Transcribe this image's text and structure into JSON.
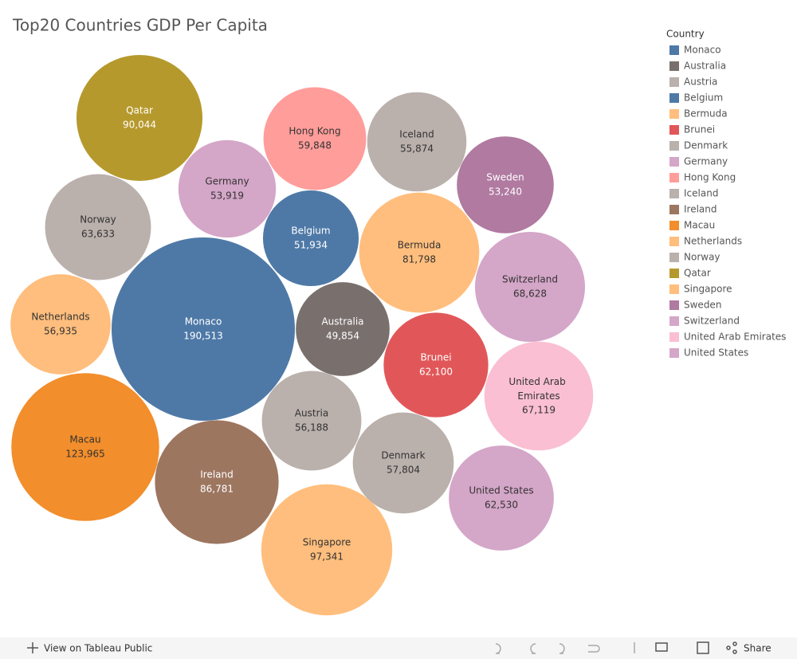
{
  "chart_data": {
    "type": "bubble",
    "title": "Top20 Countries GDP Per Capita",
    "legend_title": "Country",
    "legend": "right",
    "series": [
      {
        "name": "Monaco",
        "color": "#4e79a7",
        "values": [
          190513
        ],
        "value_labels": [
          "190,513"
        ]
      },
      {
        "name": "Australia",
        "color": "#79706e",
        "values": [
          49854
        ],
        "value_labels": [
          "49,854"
        ]
      },
      {
        "name": "Austria",
        "color": "#bab0ac",
        "values": [
          56188
        ],
        "value_labels": [
          "56,188"
        ]
      },
      {
        "name": "Belgium",
        "color": "#4e79a7",
        "values": [
          51934
        ],
        "value_labels": [
          "51,934"
        ]
      },
      {
        "name": "Bermuda",
        "color": "#ffbe7d",
        "values": [
          81798
        ],
        "value_labels": [
          "81,798"
        ]
      },
      {
        "name": "Brunei",
        "color": "#e15759",
        "values": [
          62100
        ],
        "value_labels": [
          "62,100"
        ]
      },
      {
        "name": "Denmark",
        "color": "#bab0ac",
        "values": [
          57804
        ],
        "value_labels": [
          "57,804"
        ]
      },
      {
        "name": "Germany",
        "color": "#d4a6c8",
        "values": [
          53919
        ],
        "value_labels": [
          "53,919"
        ]
      },
      {
        "name": "Hong Kong",
        "color": "#ff9d9a",
        "values": [
          59848
        ],
        "value_labels": [
          "59,848"
        ]
      },
      {
        "name": "Iceland",
        "color": "#bab0ac",
        "values": [
          55874
        ],
        "value_labels": [
          "55,874"
        ]
      },
      {
        "name": "Ireland",
        "color": "#9d7660",
        "values": [
          86781
        ],
        "value_labels": [
          "86,781"
        ]
      },
      {
        "name": "Macau",
        "color": "#f28e2b",
        "values": [
          123965
        ],
        "value_labels": [
          "123,965"
        ]
      },
      {
        "name": "Netherlands",
        "color": "#ffbe7d",
        "values": [
          56935
        ],
        "value_labels": [
          "56,935"
        ]
      },
      {
        "name": "Norway",
        "color": "#bab0ac",
        "values": [
          63633
        ],
        "value_labels": [
          "63,633"
        ]
      },
      {
        "name": "Qatar",
        "color": "#b6992d",
        "values": [
          90044
        ],
        "value_labels": [
          "90,044"
        ]
      },
      {
        "name": "Singapore",
        "color": "#ffbe7d",
        "values": [
          97341
        ],
        "value_labels": [
          "97,341"
        ]
      },
      {
        "name": "Sweden",
        "color": "#b07aa1",
        "values": [
          53240
        ],
        "value_labels": [
          "53,240"
        ]
      },
      {
        "name": "Switzerland",
        "color": "#d4a6c8",
        "values": [
          68628
        ],
        "value_labels": [
          "68,628"
        ]
      },
      {
        "name": "United Arab Emirates",
        "color": "#fabfd2",
        "values": [
          67119
        ],
        "value_labels": [
          "67,119"
        ]
      },
      {
        "name": "United States",
        "color": "#d4a6c8",
        "values": [
          62530
        ],
        "value_labels": [
          "62,530"
        ]
      }
    ]
  },
  "toolbar": {
    "view_link": "View on Tableau Public",
    "share": "Share"
  }
}
